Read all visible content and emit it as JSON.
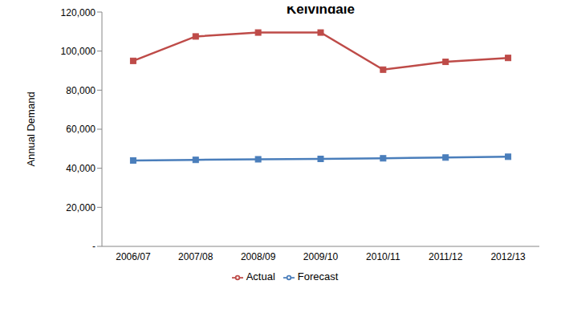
{
  "chart_data": {
    "type": "line",
    "title": "Kelvindale",
    "y_label": "Annual Demand",
    "categories": [
      "2006/07",
      "2007/08",
      "2008/09",
      "2009/10",
      "2010/11",
      "2011/12",
      "2012/13"
    ],
    "series": [
      {
        "name": "Forecast",
        "color": "#4a7ebb",
        "marker": "square",
        "values": [
          44000,
          44300,
          44600,
          44800,
          45100,
          45500,
          45900
        ]
      },
      {
        "name": "Actual",
        "color": "#be4b48",
        "marker": "square",
        "values": [
          95000,
          107500,
          109500,
          109500,
          90500,
          94500,
          96500
        ]
      }
    ],
    "ylim": [
      0,
      120000
    ],
    "yticks": [
      {
        "value": 0,
        "label": "-"
      },
      {
        "value": 20000,
        "label": "20,000"
      },
      {
        "value": 40000,
        "label": "40,000"
      },
      {
        "value": 60000,
        "label": "60,000"
      },
      {
        "value": 80000,
        "label": "80,000"
      },
      {
        "value": 100000,
        "label": "100,000"
      },
      {
        "value": 120000,
        "label": "120,000"
      }
    ],
    "grid": false,
    "legend": "bottom"
  }
}
